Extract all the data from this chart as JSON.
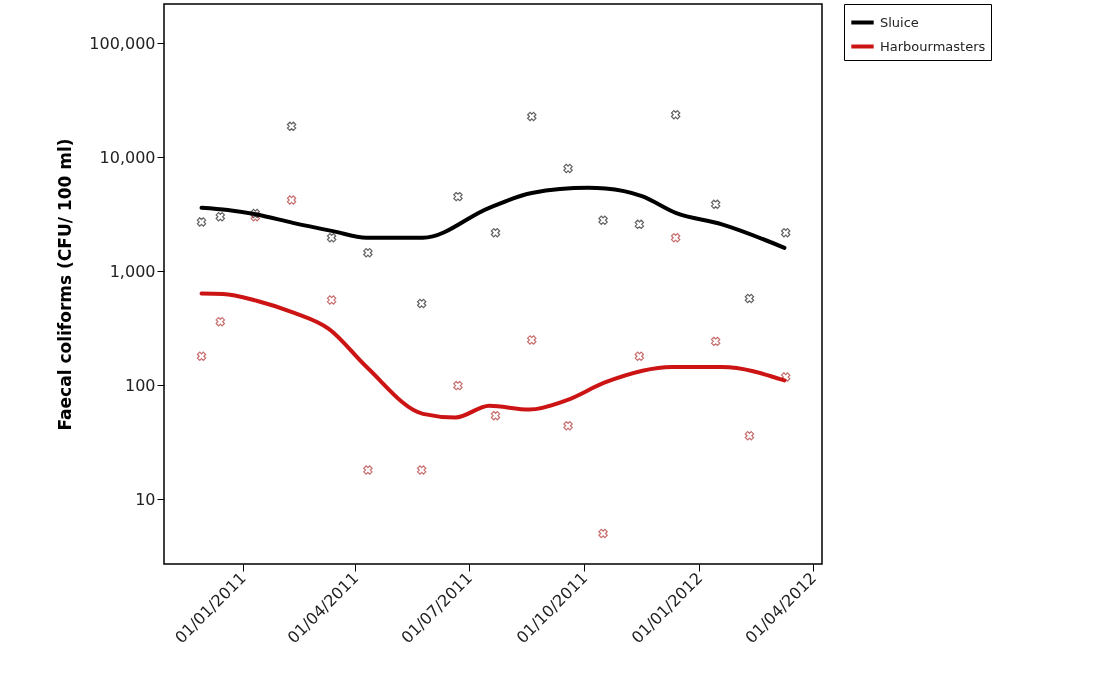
{
  "chart_data": {
    "type": "scatter",
    "ylabel": "Faecal coliforms (CFU/ 100 ml)",
    "log": "y",
    "grid": false,
    "legend": "top right",
    "xlim": [
      "2010-10-30",
      "2012-04-08"
    ],
    "xticks": [
      {
        "value": "2011-01-01",
        "label": "01/01/2011"
      },
      {
        "value": "2011-04-01",
        "label": "01/04/2011"
      },
      {
        "value": "2011-07-01",
        "label": "01/07/2011"
      },
      {
        "value": "2011-10-01",
        "label": "01/10/2011"
      },
      {
        "value": "2012-01-01",
        "label": "01/01/2012"
      },
      {
        "value": "2012-04-01",
        "label": "01/04/2012"
      }
    ],
    "ylim": [
      2.7,
      220000
    ],
    "yticks": [
      10,
      100,
      {
        "value": 1000,
        "label": "1,000"
      },
      {
        "value": 10000,
        "label": "10,000"
      },
      {
        "value": 100000,
        "label": "100,000"
      }
    ],
    "series": [
      {
        "color": "#202020",
        "marker": "cross",
        "x": [
          "2010-11-29",
          "2010-12-14",
          "2011-01-11",
          "2011-02-09",
          "2011-03-13",
          "2011-04-11",
          "2011-05-24",
          "2011-06-22",
          "2011-07-22",
          "2011-08-20",
          "2011-09-18",
          "2011-10-16",
          "2011-11-14",
          "2011-12-13",
          "2012-01-14",
          "2012-02-10",
          "2012-03-10"
        ],
        "values": [
          2700,
          3000,
          3200,
          18600,
          1960,
          1450,
          520,
          4500,
          2170,
          22700,
          7950,
          2790,
          2570,
          23500,
          3850,
          575,
          2170
        ]
      },
      {
        "color": "#b03030",
        "marker": "cross",
        "x": [
          "2010-11-29",
          "2010-12-14",
          "2011-01-11",
          "2011-02-09",
          "2011-03-13",
          "2011-04-11",
          "2011-05-24",
          "2011-06-22",
          "2011-07-22",
          "2011-08-20",
          "2011-09-18",
          "2011-10-16",
          "2011-11-14",
          "2011-12-13",
          "2012-01-14",
          "2012-02-10",
          "2012-03-10"
        ],
        "values": [
          179,
          360,
          3000,
          4200,
          557,
          18,
          18,
          99,
          54,
          249,
          44,
          5,
          179,
          1960,
          242,
          36,
          118
        ]
      },
      {
        "type": "line",
        "name": "Sluice",
        "color": "#000000",
        "x": [
          "2010-11-29",
          "2010-12-20",
          "2011-01-12",
          "2011-02-10",
          "2011-03-14",
          "2011-04-10",
          "2011-05-25",
          "2011-07-17",
          "2011-08-20",
          "2011-10-04",
          "2011-10-18",
          "2011-11-16",
          "2011-12-13",
          "2012-01-19",
          "2012-03-09"
        ],
        "values": [
          3590,
          3430,
          3140,
          2650,
          2240,
          1960,
          1960,
          3590,
          4850,
          5370,
          5300,
          4540,
          3240,
          2570,
          1600
        ]
      },
      {
        "type": "line",
        "name": "Harbourmasters",
        "color": "#cc1414",
        "x": [
          "2010-11-29",
          "2010-12-16",
          "2011-01-12",
          "2011-02-10",
          "2011-03-11",
          "2011-04-10",
          "2011-05-25",
          "2011-06-20",
          "2011-07-17",
          "2011-08-18",
          "2011-09-16",
          "2011-10-18",
          "2011-12-10",
          "2012-01-19",
          "2012-03-09"
        ],
        "values": [
          635,
          630,
          550,
          434,
          310,
          144,
          56,
          52,
          66,
          61,
          73,
          106,
          144,
          144,
          110
        ]
      }
    ]
  }
}
